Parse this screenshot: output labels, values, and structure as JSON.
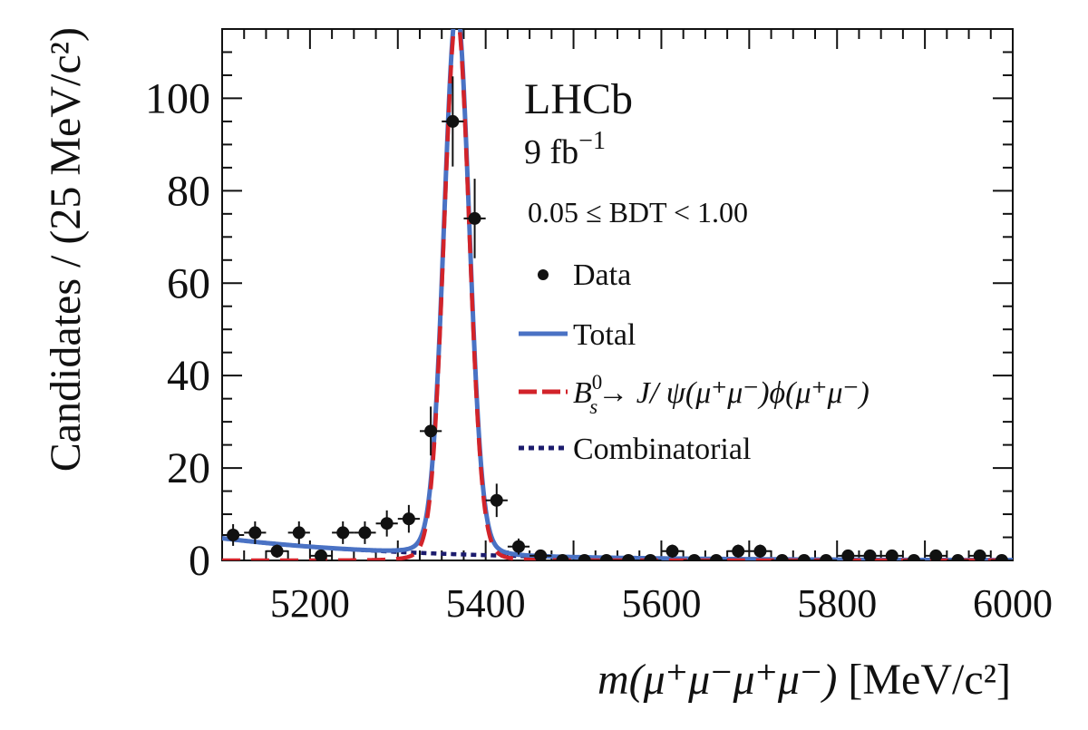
{
  "chart_data": {
    "type": "scatter",
    "title": "",
    "experiment": "LHCb",
    "luminosity": {
      "base": "9 fb",
      "exp": "−1"
    },
    "selection": "0.05 ≤ BDT < 1.00",
    "xlabel": {
      "m": "m",
      "arg": "(μ⁺μ⁻μ⁺μ⁻)",
      "unit": " [MeV/c²]"
    },
    "ylabel": "Candidates / (25 MeV/c²)",
    "xlim": [
      5100,
      6000
    ],
    "ylim": [
      0,
      115
    ],
    "xticks": [
      5200,
      5400,
      5600,
      5800,
      6000
    ],
    "yticks": [
      0,
      20,
      40,
      60,
      80,
      100
    ],
    "legend_position": "right",
    "legend": {
      "data": "Data",
      "total": "Total",
      "signal": {
        "B": "B",
        "sup": "0",
        "sub": "s",
        "decay": "→ J/ ψ(μ⁺μ⁻)ϕ(μ⁺μ⁻)"
      },
      "combinatorial": "Combinatorial"
    },
    "colors": {
      "data": "#111111",
      "total": "#4a72c4",
      "signal": "#d2232a",
      "combinatorial": "#1c1c6e"
    },
    "bin_width": 25,
    "data": [
      {
        "x": 5112.5,
        "y": 5.5
      },
      {
        "x": 5137.5,
        "y": 6
      },
      {
        "x": 5162.5,
        "y": 2
      },
      {
        "x": 5187.5,
        "y": 6
      },
      {
        "x": 5212.5,
        "y": 1
      },
      {
        "x": 5237.5,
        "y": 6
      },
      {
        "x": 5262.5,
        "y": 6
      },
      {
        "x": 5287.5,
        "y": 8
      },
      {
        "x": 5312.5,
        "y": 9
      },
      {
        "x": 5337.5,
        "y": 28
      },
      {
        "x": 5362.5,
        "y": 95
      },
      {
        "x": 5387.5,
        "y": 74
      },
      {
        "x": 5412.5,
        "y": 13
      },
      {
        "x": 5437.5,
        "y": 3
      },
      {
        "x": 5462.5,
        "y": 1
      },
      {
        "x": 5487.5,
        "y": 0
      },
      {
        "x": 5512.5,
        "y": 0
      },
      {
        "x": 5537.5,
        "y": 0
      },
      {
        "x": 5562.5,
        "y": 0
      },
      {
        "x": 5587.5,
        "y": 0
      },
      {
        "x": 5612.5,
        "y": 2
      },
      {
        "x": 5637.5,
        "y": 0
      },
      {
        "x": 5662.5,
        "y": 0
      },
      {
        "x": 5687.5,
        "y": 2
      },
      {
        "x": 5712.5,
        "y": 2
      },
      {
        "x": 5737.5,
        "y": 0
      },
      {
        "x": 5762.5,
        "y": 0
      },
      {
        "x": 5787.5,
        "y": 0
      },
      {
        "x": 5812.5,
        "y": 1
      },
      {
        "x": 5837.5,
        "y": 1
      },
      {
        "x": 5862.5,
        "y": 1
      },
      {
        "x": 5887.5,
        "y": 0
      },
      {
        "x": 5912.5,
        "y": 1
      },
      {
        "x": 5937.5,
        "y": 0
      },
      {
        "x": 5962.5,
        "y": 1
      },
      {
        "x": 5987.5,
        "y": 0
      }
    ],
    "model": {
      "signal": {
        "mean": 5367,
        "sigma": 14,
        "peak": 113
      },
      "combinatorial": {
        "amp": 4.8,
        "slope": 0.0048,
        "x0": 5100
      }
    }
  }
}
